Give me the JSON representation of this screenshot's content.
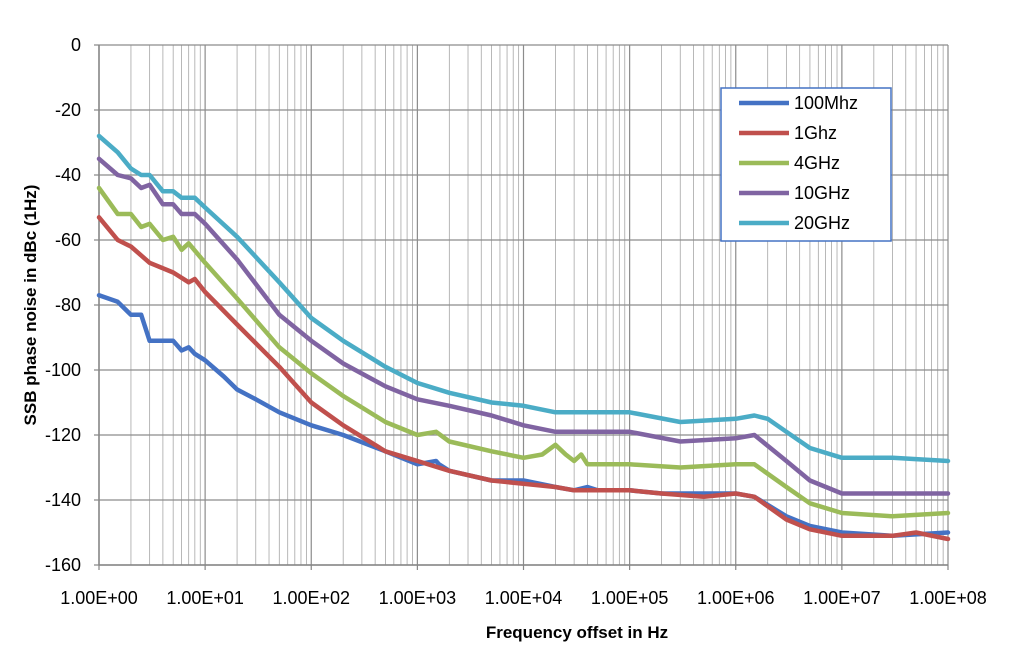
{
  "chart_data": {
    "type": "line",
    "title": "",
    "xlabel": "Frequency offset in Hz",
    "ylabel": "SSB phase noise in dBc  (1Hz)",
    "x_scale": "log",
    "xlim": [
      1,
      100000000
    ],
    "ylim": [
      -160,
      0
    ],
    "grid": true,
    "legend_position": "top-right",
    "x_tick_labels": [
      "1.00E+00",
      "1.00E+01",
      "1.00E+02",
      "1.00E+03",
      "1.00E+04",
      "1.00E+05",
      "1.00E+06",
      "1.00E+07",
      "1.00E+08"
    ],
    "y_tick_labels": [
      "0",
      "-20",
      "-40",
      "-60",
      "-80",
      "-100",
      "-120",
      "-140",
      "-160"
    ],
    "series": [
      {
        "name": "100Mhz",
        "color": "#4472C4",
        "points": [
          [
            1,
            -77
          ],
          [
            1.5,
            -79
          ],
          [
            2,
            -83
          ],
          [
            2.5,
            -83
          ],
          [
            3,
            -91
          ],
          [
            4,
            -91
          ],
          [
            5,
            -91
          ],
          [
            6,
            -94
          ],
          [
            7,
            -93
          ],
          [
            8,
            -95
          ],
          [
            10,
            -97
          ],
          [
            15,
            -102
          ],
          [
            20,
            -106
          ],
          [
            30,
            -109
          ],
          [
            50,
            -113
          ],
          [
            100,
            -117
          ],
          [
            200,
            -120
          ],
          [
            500,
            -125
          ],
          [
            1000,
            -129
          ],
          [
            1500,
            -128
          ],
          [
            1600,
            -129
          ],
          [
            2000,
            -131
          ],
          [
            5000,
            -134
          ],
          [
            10000,
            -134
          ],
          [
            20000,
            -136
          ],
          [
            30000,
            -137
          ],
          [
            40000,
            -136
          ],
          [
            50000,
            -137
          ],
          [
            100000,
            -137
          ],
          [
            200000,
            -138
          ],
          [
            500000,
            -138
          ],
          [
            1000000,
            -138
          ],
          [
            1500000,
            -139
          ],
          [
            3000000,
            -145
          ],
          [
            5000000,
            -148
          ],
          [
            10000000,
            -150
          ],
          [
            30000000,
            -151
          ],
          [
            100000000,
            -150
          ]
        ]
      },
      {
        "name": "1Ghz",
        "color": "#C0504D",
        "points": [
          [
            1,
            -53
          ],
          [
            1.5,
            -60
          ],
          [
            2,
            -62
          ],
          [
            3,
            -67
          ],
          [
            5,
            -70
          ],
          [
            7,
            -73
          ],
          [
            8,
            -72
          ],
          [
            10,
            -76
          ],
          [
            20,
            -86
          ],
          [
            50,
            -99
          ],
          [
            100,
            -110
          ],
          [
            200,
            -117
          ],
          [
            500,
            -125
          ],
          [
            1000,
            -128
          ],
          [
            2000,
            -131
          ],
          [
            5000,
            -134
          ],
          [
            10000,
            -135
          ],
          [
            20000,
            -136
          ],
          [
            30000,
            -137
          ],
          [
            50000,
            -137
          ],
          [
            100000,
            -137
          ],
          [
            200000,
            -138
          ],
          [
            500000,
            -139
          ],
          [
            1000000,
            -138
          ],
          [
            1500000,
            -139
          ],
          [
            3000000,
            -146
          ],
          [
            5000000,
            -149
          ],
          [
            10000000,
            -151
          ],
          [
            30000000,
            -151
          ],
          [
            50000000,
            -150
          ],
          [
            100000000,
            -152
          ]
        ]
      },
      {
        "name": "4GHz",
        "color": "#9BBB59",
        "points": [
          [
            1,
            -44
          ],
          [
            1.5,
            -52
          ],
          [
            2,
            -52
          ],
          [
            2.5,
            -56
          ],
          [
            3,
            -55
          ],
          [
            4,
            -60
          ],
          [
            5,
            -59
          ],
          [
            6,
            -63
          ],
          [
            7,
            -61
          ],
          [
            10,
            -67
          ],
          [
            20,
            -78
          ],
          [
            50,
            -93
          ],
          [
            100,
            -101
          ],
          [
            200,
            -108
          ],
          [
            500,
            -116
          ],
          [
            1000,
            -120
          ],
          [
            1500,
            -119
          ],
          [
            2000,
            -122
          ],
          [
            5000,
            -125
          ],
          [
            10000,
            -127
          ],
          [
            15000,
            -126
          ],
          [
            20000,
            -123
          ],
          [
            25000,
            -126
          ],
          [
            30000,
            -128
          ],
          [
            35000,
            -126
          ],
          [
            40000,
            -129
          ],
          [
            100000,
            -129
          ],
          [
            300000,
            -130
          ],
          [
            1000000,
            -129
          ],
          [
            1500000,
            -129
          ],
          [
            3000000,
            -136
          ],
          [
            5000000,
            -141
          ],
          [
            10000000,
            -144
          ],
          [
            30000000,
            -145
          ],
          [
            100000000,
            -144
          ]
        ]
      },
      {
        "name": "10GHz",
        "color": "#8064A2",
        "points": [
          [
            1,
            -35
          ],
          [
            1.5,
            -40
          ],
          [
            2,
            -41
          ],
          [
            2.5,
            -44
          ],
          [
            3,
            -43
          ],
          [
            4,
            -49
          ],
          [
            5,
            -49
          ],
          [
            6,
            -52
          ],
          [
            8,
            -52
          ],
          [
            10,
            -55
          ],
          [
            20,
            -66
          ],
          [
            50,
            -83
          ],
          [
            100,
            -91
          ],
          [
            200,
            -98
          ],
          [
            500,
            -105
          ],
          [
            1000,
            -109
          ],
          [
            2000,
            -111
          ],
          [
            5000,
            -114
          ],
          [
            10000,
            -117
          ],
          [
            20000,
            -119
          ],
          [
            50000,
            -119
          ],
          [
            100000,
            -119
          ],
          [
            300000,
            -122
          ],
          [
            1000000,
            -121
          ],
          [
            1500000,
            -120
          ],
          [
            3000000,
            -128
          ],
          [
            5000000,
            -134
          ],
          [
            10000000,
            -138
          ],
          [
            30000000,
            -138
          ],
          [
            100000000,
            -138
          ]
        ]
      },
      {
        "name": "20GHz",
        "color": "#4BACC6",
        "points": [
          [
            1,
            -28
          ],
          [
            1.5,
            -33
          ],
          [
            2,
            -38
          ],
          [
            2.5,
            -40
          ],
          [
            3,
            -40
          ],
          [
            4,
            -45
          ],
          [
            5,
            -45
          ],
          [
            6,
            -47
          ],
          [
            8,
            -47
          ],
          [
            10,
            -50
          ],
          [
            20,
            -59
          ],
          [
            50,
            -73
          ],
          [
            100,
            -84
          ],
          [
            200,
            -91
          ],
          [
            500,
            -99
          ],
          [
            1000,
            -104
          ],
          [
            2000,
            -107
          ],
          [
            5000,
            -110
          ],
          [
            10000,
            -111
          ],
          [
            20000,
            -113
          ],
          [
            30000,
            -113
          ],
          [
            50000,
            -113
          ],
          [
            100000,
            -113
          ],
          [
            300000,
            -116
          ],
          [
            1000000,
            -115
          ],
          [
            1500000,
            -114
          ],
          [
            2000000,
            -115
          ],
          [
            3000000,
            -119
          ],
          [
            5000000,
            -124
          ],
          [
            10000000,
            -127
          ],
          [
            30000000,
            -127
          ],
          [
            100000000,
            -128
          ]
        ]
      }
    ]
  }
}
